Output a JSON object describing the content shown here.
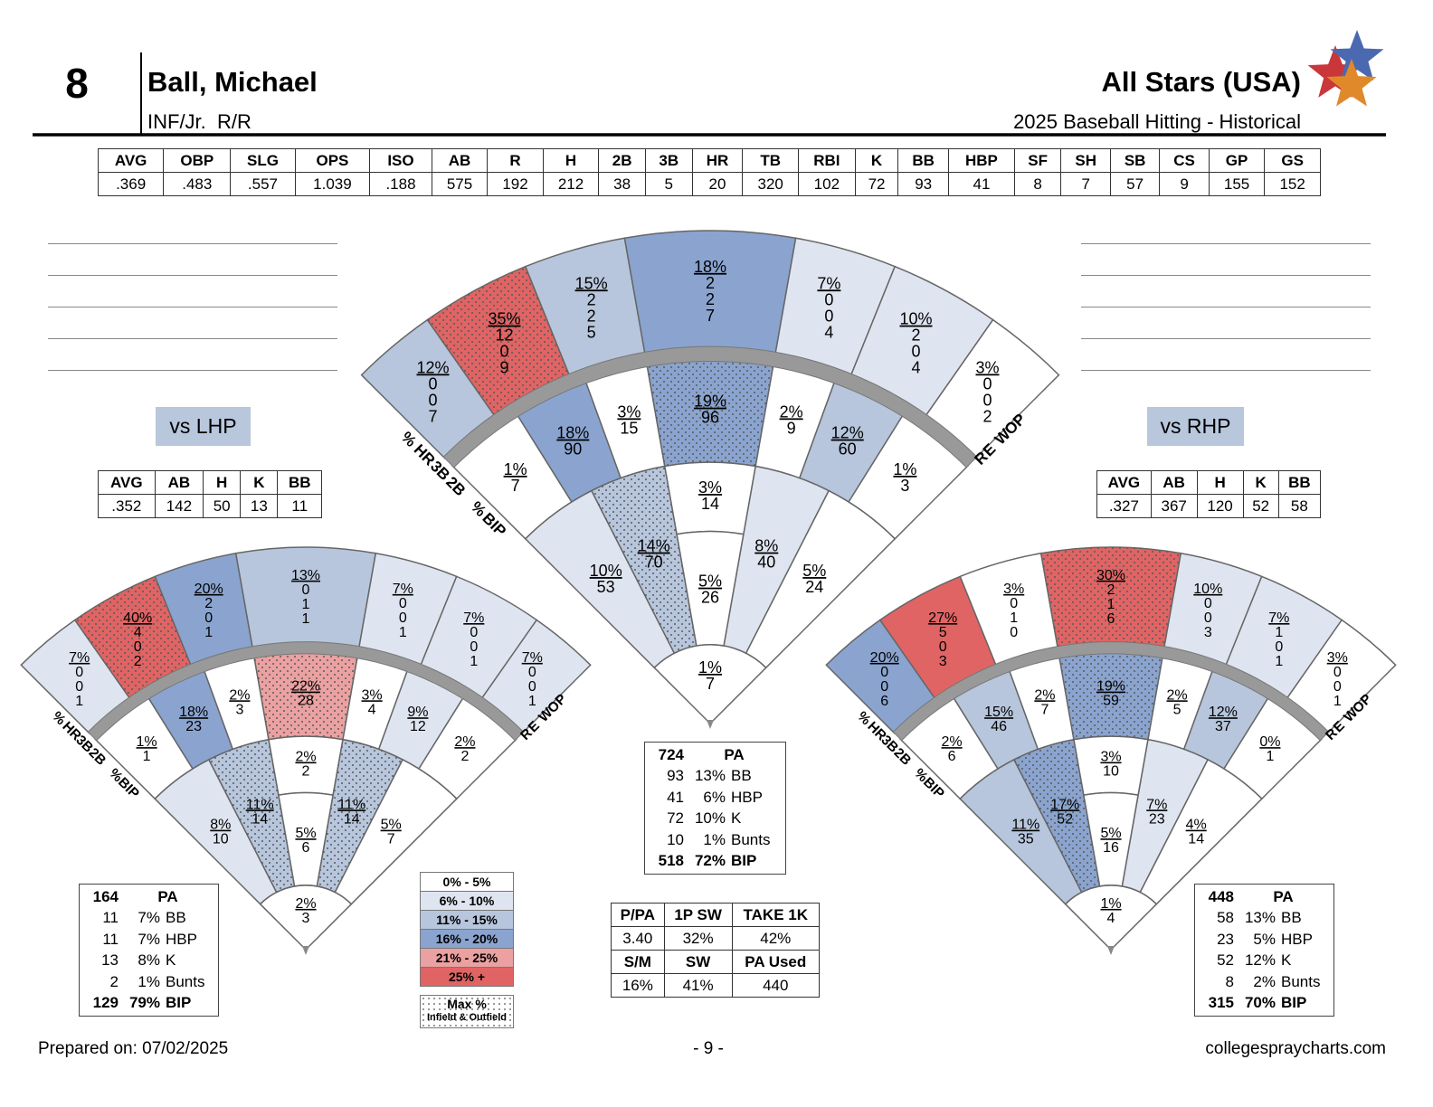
{
  "header": {
    "number": "8",
    "name": "Ball, Michael",
    "position": "INF/Jr.  R/R",
    "team": "All Stars (USA)",
    "report": "2025 Baseball Hitting - Historical"
  },
  "season_stats": {
    "headers": [
      "AVG",
      "OBP",
      "SLG",
      "OPS",
      "ISO",
      "AB",
      "R",
      "H",
      "2B",
      "3B",
      "HR",
      "TB",
      "RBI",
      "K",
      "BB",
      "HBP",
      "SF",
      "SH",
      "SB",
      "CS",
      "GP",
      "GS"
    ],
    "values": [
      ".369",
      ".483",
      ".557",
      "1.039",
      ".188",
      "575",
      "192",
      "212",
      "38",
      "5",
      "20",
      "320",
      "102",
      "72",
      "93",
      "41",
      "8",
      "7",
      "57",
      "9",
      "155",
      "152"
    ]
  },
  "spray_labels": {
    "hit_types": [
      "%",
      "HR",
      "3B",
      "2B"
    ],
    "bip": [
      "%",
      "BIP"
    ],
    "power": "POWER"
  },
  "overall": {
    "spray": {
      "outfield": [
        {
          "pct": "12%",
          "hits": [
            "0",
            "0",
            "7"
          ],
          "color": "#b7c6dc"
        },
        {
          "pct": "35%",
          "hits": [
            "12",
            "0",
            "9"
          ],
          "color": "#e06464",
          "max": true
        },
        {
          "pct": "15%",
          "hits": [
            "2",
            "2",
            "5"
          ],
          "color": "#b7c6dc"
        },
        {
          "pct": "18%",
          "hits": [
            "2",
            "2",
            "7"
          ],
          "color": "#8aa4cf"
        },
        {
          "pct": "7%",
          "hits": [
            "0",
            "0",
            "4"
          ],
          "color": "#dfe5f0"
        },
        {
          "pct": "10%",
          "hits": [
            "2",
            "0",
            "4"
          ],
          "color": "#dfe5f0"
        },
        {
          "pct": "3%",
          "hits": [
            "0",
            "0",
            "2"
          ],
          "color": "#ffffff"
        }
      ],
      "middle": [
        {
          "pct": "1%",
          "count": "7",
          "color": "#ffffff"
        },
        {
          "pct": "18%",
          "count": "90",
          "color": "#8aa4cf"
        },
        {
          "pct": "3%",
          "count": "15",
          "color": "#ffffff"
        },
        {
          "pct": "19%",
          "count": "96",
          "color": "#8aa4cf",
          "max": true
        },
        {
          "pct": "2%",
          "count": "9",
          "color": "#ffffff"
        },
        {
          "pct": "12%",
          "count": "60",
          "color": "#b7c6dc"
        },
        {
          "pct": "1%",
          "count": "3",
          "color": "#ffffff"
        }
      ],
      "infield": [
        {
          "pct": "10%",
          "count": "53",
          "color": "#dfe5f0"
        },
        {
          "pct": "14%",
          "count": "70",
          "color": "#b7c6dc",
          "max": true
        },
        {
          "pct": "3%",
          "count": "14",
          "color": "#ffffff"
        },
        {
          "pct": "5%",
          "count": "26",
          "color": "#ffffff"
        },
        {
          "pct": "8%",
          "count": "40",
          "color": "#dfe5f0"
        },
        {
          "pct": "5%",
          "count": "24",
          "color": "#ffffff"
        },
        {
          "pct": "1%",
          "count": "7",
          "color": "#ffffff"
        }
      ]
    },
    "summary": {
      "total": [
        "724",
        "PA"
      ],
      "rows": [
        [
          "93",
          "13%",
          "BB"
        ],
        [
          "41",
          "6%",
          "HBP"
        ],
        [
          "72",
          "10%",
          "K"
        ],
        [
          "10",
          "1%",
          "Bunts"
        ]
      ],
      "bip": [
        "518",
        "72%",
        "BIP"
      ]
    }
  },
  "vs_lhp": {
    "label": "vs LHP",
    "stats": {
      "headers": [
        "AVG",
        "AB",
        "H",
        "K",
        "BB"
      ],
      "values": [
        ".352",
        "142",
        "50",
        "13",
        "11"
      ]
    },
    "spray": {
      "outfield": [
        {
          "pct": "7%",
          "hits": [
            "0",
            "0",
            "1"
          ],
          "color": "#dfe5f0"
        },
        {
          "pct": "40%",
          "hits": [
            "4",
            "0",
            "2"
          ],
          "color": "#e06464",
          "max": true
        },
        {
          "pct": "20%",
          "hits": [
            "2",
            "0",
            "1"
          ],
          "color": "#8aa4cf"
        },
        {
          "pct": "13%",
          "hits": [
            "0",
            "1",
            "1"
          ],
          "color": "#b7c6dc"
        },
        {
          "pct": "7%",
          "hits": [
            "0",
            "0",
            "1"
          ],
          "color": "#dfe5f0"
        },
        {
          "pct": "7%",
          "hits": [
            "0",
            "0",
            "1"
          ],
          "color": "#dfe5f0"
        },
        {
          "pct": "7%",
          "hits": [
            "0",
            "0",
            "1"
          ],
          "color": "#dfe5f0"
        }
      ],
      "middle": [
        {
          "pct": "1%",
          "count": "1",
          "color": "#ffffff"
        },
        {
          "pct": "18%",
          "count": "23",
          "color": "#8aa4cf"
        },
        {
          "pct": "2%",
          "count": "3",
          "color": "#ffffff"
        },
        {
          "pct": "22%",
          "count": "28",
          "color": "#eba1a1",
          "max": true
        },
        {
          "pct": "3%",
          "count": "4",
          "color": "#ffffff"
        },
        {
          "pct": "9%",
          "count": "12",
          "color": "#dfe5f0"
        },
        {
          "pct": "2%",
          "count": "2",
          "color": "#ffffff"
        }
      ],
      "infield": [
        {
          "pct": "8%",
          "count": "10",
          "color": "#dfe5f0"
        },
        {
          "pct": "11%",
          "count": "14",
          "color": "#b7c6dc",
          "max": true
        },
        {
          "pct": "2%",
          "count": "2",
          "color": "#ffffff"
        },
        {
          "pct": "5%",
          "count": "6",
          "color": "#ffffff"
        },
        {
          "pct": "11%",
          "count": "14",
          "color": "#b7c6dc",
          "max": true
        },
        {
          "pct": "5%",
          "count": "7",
          "color": "#ffffff"
        },
        {
          "pct": "2%",
          "count": "3",
          "color": "#ffffff"
        }
      ]
    },
    "summary": {
      "total": [
        "164",
        "PA"
      ],
      "rows": [
        [
          "11",
          "7%",
          "BB"
        ],
        [
          "11",
          "7%",
          "HBP"
        ],
        [
          "13",
          "8%",
          "K"
        ],
        [
          "2",
          "1%",
          "Bunts"
        ]
      ],
      "bip": [
        "129",
        "79%",
        "BIP"
      ]
    }
  },
  "vs_rhp": {
    "label": "vs RHP",
    "stats": {
      "headers": [
        "AVG",
        "AB",
        "H",
        "K",
        "BB"
      ],
      "values": [
        ".327",
        "367",
        "120",
        "52",
        "58"
      ]
    },
    "spray": {
      "outfield": [
        {
          "pct": "20%",
          "hits": [
            "0",
            "0",
            "6"
          ],
          "color": "#8aa4cf"
        },
        {
          "pct": "27%",
          "hits": [
            "5",
            "0",
            "3"
          ],
          "color": "#e06464"
        },
        {
          "pct": "3%",
          "hits": [
            "0",
            "1",
            "0"
          ],
          "color": "#ffffff"
        },
        {
          "pct": "30%",
          "hits": [
            "2",
            "1",
            "6"
          ],
          "color": "#e06464",
          "max": true
        },
        {
          "pct": "10%",
          "hits": [
            "0",
            "0",
            "3"
          ],
          "color": "#dfe5f0"
        },
        {
          "pct": "7%",
          "hits": [
            "1",
            "0",
            "1"
          ],
          "color": "#dfe5f0"
        },
        {
          "pct": "3%",
          "hits": [
            "0",
            "0",
            "1"
          ],
          "color": "#ffffff"
        }
      ],
      "middle": [
        {
          "pct": "2%",
          "count": "6",
          "color": "#ffffff"
        },
        {
          "pct": "15%",
          "count": "46",
          "color": "#b7c6dc"
        },
        {
          "pct": "2%",
          "count": "7",
          "color": "#ffffff"
        },
        {
          "pct": "19%",
          "count": "59",
          "color": "#8aa4cf",
          "max": true
        },
        {
          "pct": "2%",
          "count": "5",
          "color": "#ffffff"
        },
        {
          "pct": "12%",
          "count": "37",
          "color": "#b7c6dc"
        },
        {
          "pct": "0%",
          "count": "1",
          "color": "#ffffff"
        }
      ],
      "infield": [
        {
          "pct": "11%",
          "count": "35",
          "color": "#b7c6dc"
        },
        {
          "pct": "17%",
          "count": "52",
          "color": "#8aa4cf",
          "max": true
        },
        {
          "pct": "3%",
          "count": "10",
          "color": "#ffffff"
        },
        {
          "pct": "5%",
          "count": "16",
          "color": "#ffffff"
        },
        {
          "pct": "7%",
          "count": "23",
          "color": "#dfe5f0"
        },
        {
          "pct": "4%",
          "count": "14",
          "color": "#ffffff"
        },
        {
          "pct": "1%",
          "count": "4",
          "color": "#ffffff"
        }
      ]
    },
    "summary": {
      "total": [
        "448",
        "PA"
      ],
      "rows": [
        [
          "58",
          "13%",
          "BB"
        ],
        [
          "23",
          "5%",
          "HBP"
        ],
        [
          "52",
          "12%",
          "K"
        ],
        [
          "8",
          "2%",
          "Bunts"
        ]
      ],
      "bip": [
        "315",
        "70%",
        "BIP"
      ]
    }
  },
  "legend": {
    "items": [
      {
        "label": "0% - 5%",
        "color": "#ffffff"
      },
      {
        "label": "6% - 10%",
        "color": "#dfe5f0"
      },
      {
        "label": "11% - 15%",
        "color": "#b7c6dc"
      },
      {
        "label": "16% - 20%",
        "color": "#8aa4cf"
      },
      {
        "label": "21% - 25%",
        "color": "#eba1a1"
      },
      {
        "label": "25% +",
        "color": "#e06464"
      }
    ],
    "max": [
      "Max %",
      "Infield & Outfield"
    ]
  },
  "discipline": {
    "rows": [
      [
        "P/PA",
        "1P SW",
        "TAKE 1K"
      ],
      [
        "3.40",
        "32%",
        "42%"
      ],
      [
        "S/M",
        "SW",
        "PA Used"
      ],
      [
        "16%",
        "41%",
        "440"
      ]
    ]
  },
  "footer": {
    "prepared": "Prepared on: 07/02/2025",
    "page": "- 9 -",
    "site": "collegespraycharts.com"
  }
}
